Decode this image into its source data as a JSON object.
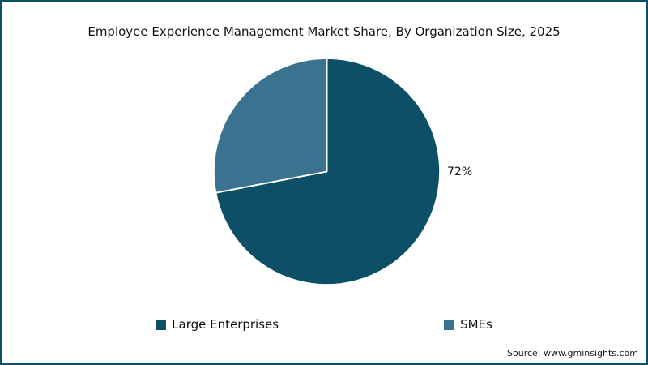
{
  "chart_data": {
    "type": "pie",
    "title": "Employee Experience Management Market Share, By Organization Size, 2025",
    "slices": [
      {
        "label": "Large Enterprises",
        "value": 72,
        "color": "#0d4f66"
      },
      {
        "label": "SMEs",
        "value": 28,
        "color": "#3a7290"
      }
    ],
    "data_label": "72%",
    "start_angle_deg": 0,
    "direction": "clockwise",
    "legend_position": "bottom",
    "slice_stroke_color": "#ffffff"
  },
  "footer": {
    "source": "Source: www.gminsights.com"
  },
  "colors": {
    "frame_border": "#0d4f66",
    "background": "#ffffff",
    "text": "#111111"
  }
}
